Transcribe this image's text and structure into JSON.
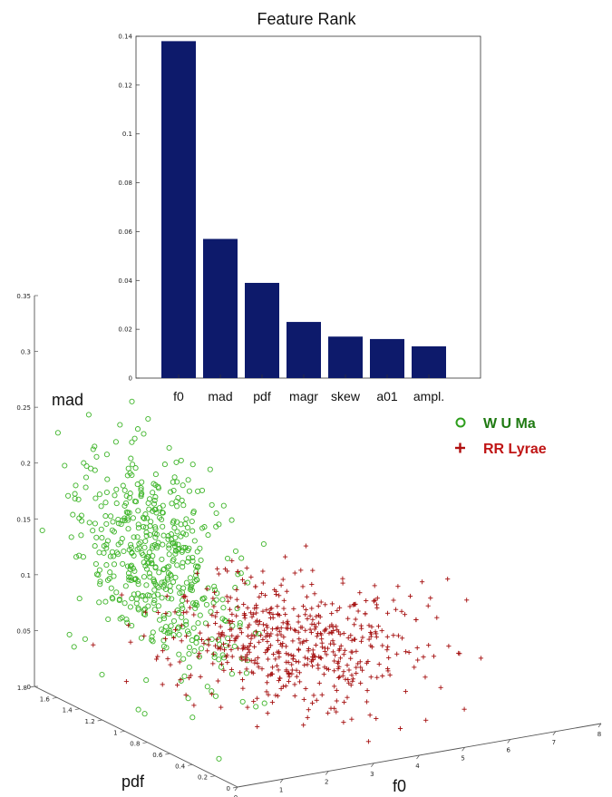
{
  "chart_data": [
    {
      "type": "bar",
      "title": "Feature Rank",
      "categories": [
        "f0",
        "mad",
        "pdf",
        "magr",
        "skew",
        "a01",
        "ampl."
      ],
      "values": [
        0.138,
        0.057,
        0.039,
        0.023,
        0.017,
        0.016,
        0.013
      ],
      "ylim": [
        0,
        0.14
      ],
      "yticks": [
        "0",
        "0.02",
        "0.04",
        "0.06",
        "0.08",
        "0.1",
        "0.12",
        "0.14"
      ],
      "bar_color": "#0d1a6b",
      "grid": false
    },
    {
      "type": "scatter",
      "projection": "3d",
      "axes": {
        "x": {
          "label": "f0",
          "range": [
            0,
            8
          ],
          "ticks": [
            "0",
            "1",
            "2",
            "3",
            "4",
            "5",
            "6",
            "7",
            "8"
          ]
        },
        "y": {
          "label": "pdf",
          "range": [
            0,
            1.8
          ],
          "ticks": [
            "0",
            "0.2",
            "0.4",
            "0.6",
            "0.8",
            "1",
            "1.2",
            "1.4",
            "1.6",
            "1.8"
          ]
        },
        "z": {
          "label": "mad",
          "range": [
            0,
            0.35
          ],
          "ticks": [
            "0",
            "0.05",
            "0.1",
            "0.15",
            "0.2",
            "0.25",
            "0.3",
            "0.35"
          ]
        }
      },
      "legend": {
        "position": "top-right",
        "entries": [
          {
            "name": "W U Ma",
            "marker": "o",
            "color": "#2d9e1c",
            "text_color": "#1f7a12"
          },
          {
            "name": "RR Lyrae",
            "marker": "+",
            "color": "#b01010",
            "text_color": "#c01515"
          }
        ]
      },
      "series": [
        {
          "name": "W U Ma",
          "marker": "o",
          "color": "#3fb52a",
          "cluster": {
            "f0_mean": 0.9,
            "f0_sd": 0.45,
            "pdf_mean": 1.1,
            "pdf_sd": 0.32,
            "mad_mean": 0.14,
            "mad_sd": 0.045,
            "count": 520
          }
        },
        {
          "name": "RR Lyrae",
          "marker": "+",
          "color": "#a50f0f",
          "cluster": {
            "f0_mean": 3.6,
            "f0_sd": 1.1,
            "pdf_mean": 0.95,
            "pdf_sd": 0.35,
            "mad_mean": 0.055,
            "mad_sd": 0.022,
            "count": 560
          }
        }
      ]
    }
  ]
}
